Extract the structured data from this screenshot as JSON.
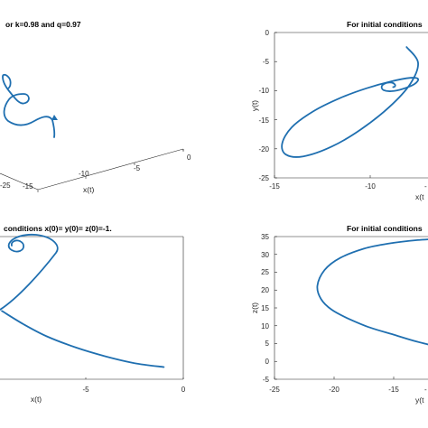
{
  "chart_data": [
    {
      "type": "line",
      "projection": "3d",
      "title": "or k=0.98 and q=0.97",
      "xlabel": "x(t)",
      "x_ticks": [
        "-15",
        "-10",
        "-5",
        "0"
      ],
      "y_ticks": [
        "-25"
      ],
      "series_color": "#1f6fb0"
    },
    {
      "type": "line",
      "title": "For initial conditions",
      "xlabel": "x(t",
      "ylabel": "y(t)",
      "xlim": [
        -15,
        -7.5
      ],
      "ylim": [
        -25,
        0
      ],
      "x_ticks": [
        "-15",
        "-10",
        "-"
      ],
      "y_ticks": [
        "0",
        "-5",
        "-10",
        "-15",
        "-20",
        "-25"
      ],
      "series_color": "#1f6fb0",
      "x": [
        -8.1,
        -7.5,
        -7.9,
        -9.0,
        -10.5,
        -12.0,
        -13.5,
        -14.4,
        -14.6,
        -14.1,
        -13.0,
        -11.6,
        -10.2,
        -8.9,
        -7.9,
        -7.5,
        -7.7,
        -8.3,
        -8.9,
        -9.3,
        -9.4,
        -9.25,
        -9.0,
        -8.8,
        -8.7,
        -8.72,
        -8.8
      ],
      "y": [
        -2.5,
        -5.2,
        -8.8,
        -12.8,
        -16.7,
        -19.6,
        -21.3,
        -21.0,
        -19.1,
        -16.3,
        -13.6,
        -11.3,
        -9.6,
        -8.4,
        -7.8,
        -8.0,
        -8.9,
        -9.7,
        -10.1,
        -9.9,
        -9.3,
        -8.8,
        -8.6,
        -8.7,
        -9.0,
        -9.3,
        -9.4
      ]
    },
    {
      "type": "line",
      "title": "conditions x(0)= y(0)= z(0)=-1.",
      "xlabel": "x(t)",
      "xlim": [
        -9.3,
        0
      ],
      "x_ticks": [
        "-5",
        "0"
      ],
      "series_color": "#1f6fb0",
      "x": [
        -1.0,
        -2.5,
        -4.0,
        -5.5,
        -7.0,
        -8.2,
        -9.3
      ],
      "y": [
        2.5,
        3.3,
        4.7,
        6.5,
        8.8,
        11.3,
        14.0
      ]
    },
    {
      "type": "line",
      "title": "For initial conditions",
      "xlabel": "y(t",
      "ylabel": "z(t)",
      "xlim": [
        -25,
        -10.5
      ],
      "ylim": [
        -5,
        35
      ],
      "x_ticks": [
        "-25",
        "-20",
        "-15",
        "-"
      ],
      "y_ticks": [
        "35",
        "30",
        "25",
        "20",
        "15",
        "10",
        "5",
        "0",
        "-5"
      ],
      "series_color": "#1f6fb0",
      "x": [
        -10.5,
        -13.0,
        -15.5,
        -17.5,
        -19.5,
        -20.8,
        -21.4,
        -21.1,
        -20.2,
        -18.8,
        -17.0,
        -15.0,
        -13.0,
        -10.5
      ],
      "y": [
        34.5,
        34.0,
        33.0,
        31.6,
        29.0,
        25.6,
        21.2,
        17.5,
        14.5,
        12.0,
        9.5,
        7.5,
        5.5,
        3.5
      ]
    }
  ]
}
